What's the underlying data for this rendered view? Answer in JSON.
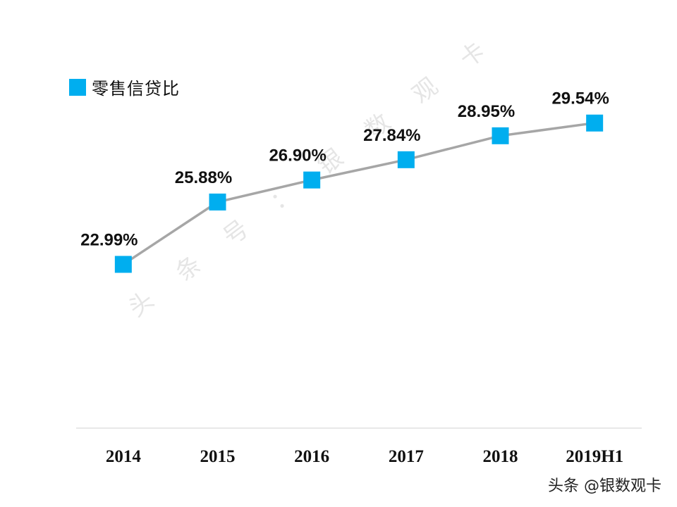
{
  "legend": {
    "label": "零售信贷比",
    "swatch_color": "#00AEEF"
  },
  "watermarks": {
    "diagonal": "头条号：银数观卡",
    "footer": "头条 @银数观卡"
  },
  "chart_data": {
    "type": "line",
    "title": "",
    "xlabel": "",
    "ylabel": "",
    "categories": [
      "2014",
      "2015",
      "2016",
      "2017",
      "2018",
      "2019H1"
    ],
    "series": [
      {
        "name": "零售信贷比",
        "values": [
          22.99,
          25.88,
          26.9,
          27.84,
          28.95,
          29.54
        ],
        "labels": [
          "22.99%",
          "25.88%",
          "26.90%",
          "27.84%",
          "28.95%",
          "29.54%"
        ],
        "color": "#00AEEF",
        "line_color": "#A6A6A6"
      }
    ],
    "ylim": [
      15.4,
      31.0
    ],
    "grid": false,
    "legend_position": "top-left"
  }
}
